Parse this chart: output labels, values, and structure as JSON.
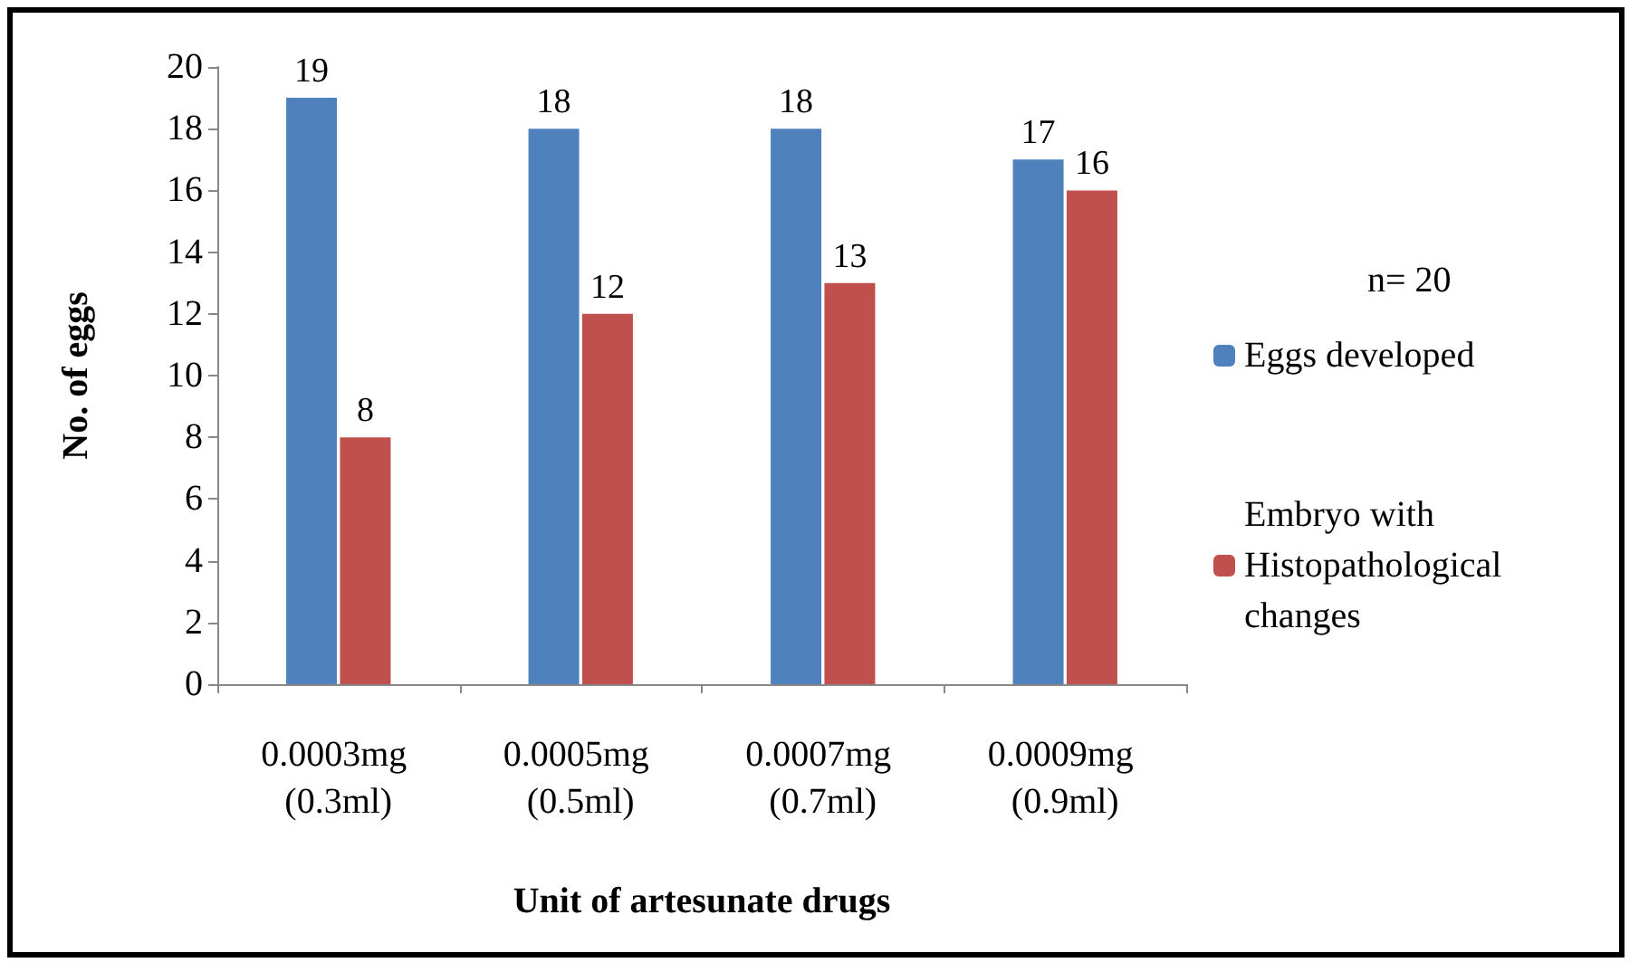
{
  "chart_data": {
    "type": "bar",
    "xlabel": "Unit of artesunate drugs",
    "ylabel": "No. of eggs",
    "categories": [
      "0.0003mg (0.3ml)",
      "0.0005mg (0.5ml)",
      "0.0007mg (0.7ml)",
      "0.0009mg (0.9ml)"
    ],
    "series": [
      {
        "name": "Eggs developed",
        "color": "#4f81bd",
        "values": [
          19,
          18,
          18,
          17
        ]
      },
      {
        "name": "Embryo with Histopathological changes",
        "color": "#c0504d",
        "values": [
          8,
          12,
          13,
          16
        ]
      }
    ],
    "ylim": [
      0,
      20
    ],
    "yticks": [
      0,
      2,
      4,
      6,
      8,
      10,
      12,
      14,
      16,
      18,
      20
    ],
    "grid": false,
    "legend": "right",
    "data_labels": true,
    "annotations": [
      "n= 20"
    ]
  }
}
